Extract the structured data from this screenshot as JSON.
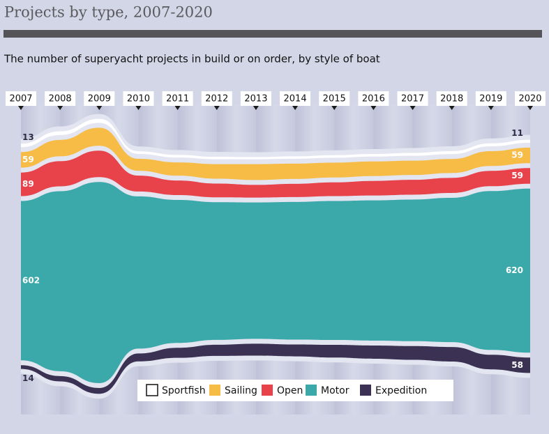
{
  "chart_data": {
    "type": "streamgraph",
    "title": "Projects by type, 2007-2020",
    "subtitle": "The number of superyacht projects in build or on order, by style of boat",
    "categories": [
      "2007",
      "2008",
      "2009",
      "2010",
      "2011",
      "2012",
      "2013",
      "2014",
      "2015",
      "2016",
      "2017",
      "2018",
      "2019",
      "2020"
    ],
    "series": [
      {
        "name": "Sportfish",
        "color": "#ffffff",
        "values": [
          13,
          14,
          15,
          10,
          10,
          9,
          8,
          9,
          10,
          10,
          11,
          11,
          11,
          11
        ]
      },
      {
        "name": "Sailing",
        "color": "#f6bc45",
        "values": [
          59,
          62,
          68,
          45,
          50,
          55,
          60,
          58,
          56,
          55,
          54,
          53,
          56,
          59
        ]
      },
      {
        "name": "Open",
        "color": "#e8424b",
        "values": [
          89,
          95,
          100,
          60,
          55,
          52,
          48,
          50,
          52,
          55,
          56,
          57,
          58,
          59
        ]
      },
      {
        "name": "Motor",
        "color": "#3ba8aa",
        "values": [
          602,
          680,
          760,
          575,
          540,
          520,
          515,
          520,
          525,
          530,
          535,
          545,
          600,
          620
        ]
      },
      {
        "name": "Expedition",
        "color": "#3b3253",
        "values": [
          14,
          20,
          22,
          30,
          38,
          42,
          45,
          45,
          48,
          50,
          52,
          55,
          55,
          58
        ]
      }
    ]
  }
}
